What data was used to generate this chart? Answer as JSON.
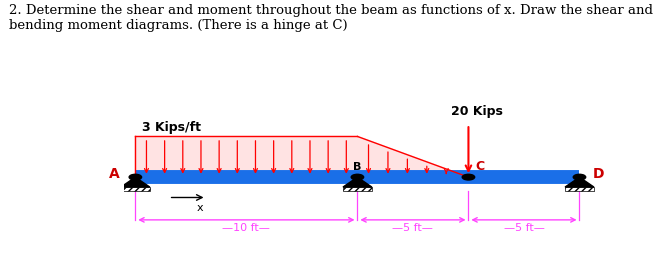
{
  "title_text": "2. Determine the shear and moment throughout the beam as functions of x. Draw the shear and\nbending moment diagrams. (There is a hinge at C)",
  "title_fontsize": 9.5,
  "bg_color": "#ffffff",
  "beam_color": "#1a6fe8",
  "load_color": "#ff0000",
  "dim_color": "#ff44ff",
  "label_color": "#000000",
  "red_label_color": "#cc0000",
  "label_3kips": "3 Kips/ft",
  "label_20kips": "20 Kips",
  "label_A": "A",
  "label_B": "B",
  "label_C": "C",
  "label_D": "D",
  "label_x": "x",
  "dim_10ft": "10 ft",
  "dim_5ft_1": "5 ft",
  "dim_5ft_2": "5 ft"
}
